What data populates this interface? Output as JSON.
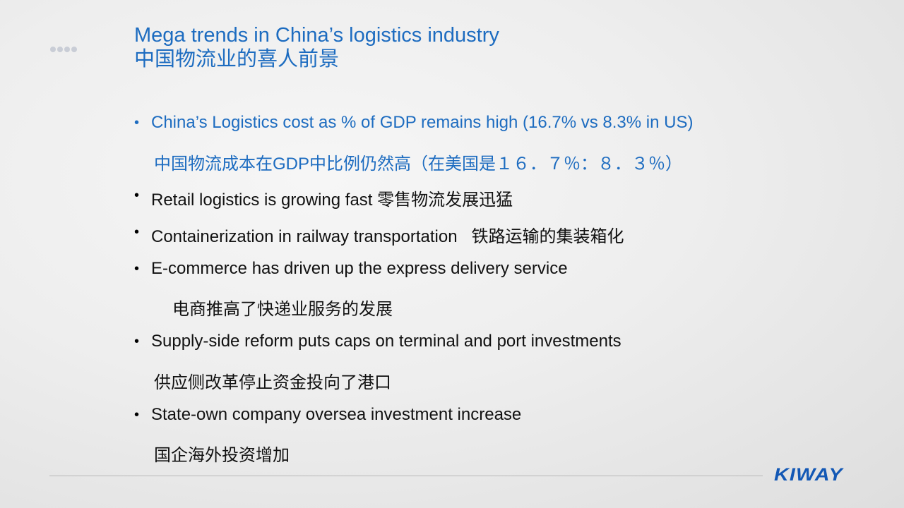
{
  "title": {
    "en": "Mega trends in China’s logistics industry",
    "zh": "中国物流业的喜人前景"
  },
  "bullets": [
    {
      "text": "China’s Logistics cost as % of GDP remains high (16.7% vs 8.3% in US)",
      "sub": "中国物流成本在GDP中比例仍然高（在美国是１６．７％：８．３％）"
    },
    {
      "text": "Retail logistics is growing fast 零售物流发展迅猛"
    },
    {
      "text": "Containerization in railway transportation   铁路运输的集装箱化"
    },
    {
      "text": "E-commerce has driven up the express delivery service",
      "sub": "电商推高了快递业服务的发展"
    },
    {
      "text": "Supply-side reform puts caps on terminal and port investments",
      "sub": "供应侧改革停止资金投向了港口"
    },
    {
      "text": "State-own company oversea investment increase",
      "sub": "国企海外投资增加"
    }
  ],
  "logo": "KIWAY",
  "colors": {
    "accent": "#1d6cc0"
  }
}
